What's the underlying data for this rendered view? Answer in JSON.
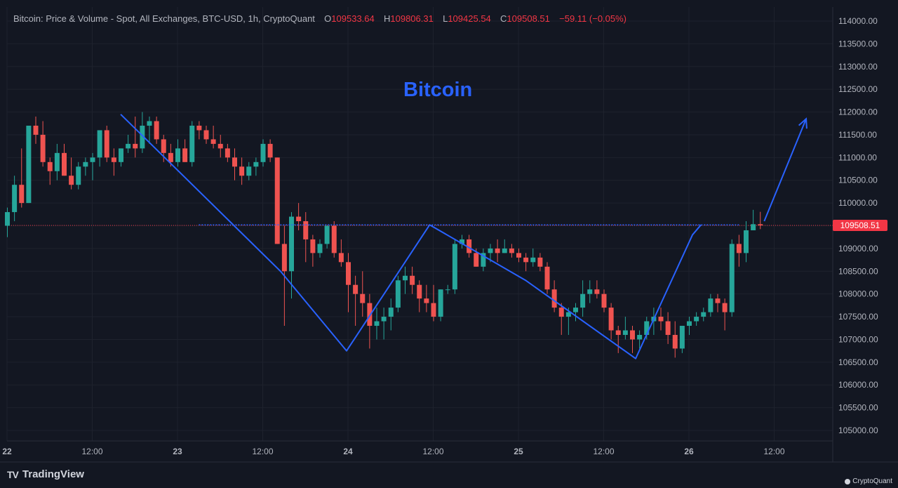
{
  "legend": {
    "symbol": "Bitcoin: Price & Volume - Spot, All Exchanges, BTC-USD, 1h, CryptoQuant",
    "open_label": "O",
    "open": "109533.64",
    "high_label": "H",
    "high": "109806.31",
    "low_label": "L",
    "low": "109425.54",
    "close_label": "C",
    "close": "109508.51",
    "change": "−59.11 (−0.05%)"
  },
  "annotation": {
    "title": "Bitcoin"
  },
  "branding": {
    "tradingview": "TradingView",
    "cryptoquant": "CryptoQuant"
  },
  "last_price_tag": "109508.51",
  "colors": {
    "background": "#131722",
    "grid": "#1e222d",
    "up": "#26a69a",
    "down": "#ef5350",
    "drawing": "#2962ff",
    "last_price": "#f23645"
  },
  "chart_data": {
    "type": "candlestick",
    "interval": "1h",
    "ylim": [
      104700,
      114300
    ],
    "yticks": [
      "114000.00",
      "113500.00",
      "113000.00",
      "112500.00",
      "112000.00",
      "111500.00",
      "111000.00",
      "110500.00",
      "110000.00",
      "109500.00",
      "109000.00",
      "108500.00",
      "108000.00",
      "107500.00",
      "107000.00",
      "106500.00",
      "106000.00",
      "105500.00",
      "105000.00"
    ],
    "xticks": [
      {
        "label": "22",
        "bold": true,
        "hour": 0
      },
      {
        "label": "12:00",
        "bold": false,
        "hour": 12
      },
      {
        "label": "23",
        "bold": true,
        "hour": 24
      },
      {
        "label": "12:00",
        "bold": false,
        "hour": 36
      },
      {
        "label": "24",
        "bold": true,
        "hour": 48
      },
      {
        "label": "12:00",
        "bold": false,
        "hour": 60
      },
      {
        "label": "25",
        "bold": true,
        "hour": 72
      },
      {
        "label": "12:00",
        "bold": false,
        "hour": 84
      },
      {
        "label": "26",
        "bold": true,
        "hour": 96
      },
      {
        "label": "12:00",
        "bold": false,
        "hour": 108
      }
    ],
    "last_price": 109508.51,
    "candles": [
      [
        0,
        109500,
        109900,
        109250,
        109800
      ],
      [
        1,
        109800,
        110600,
        109600,
        110400
      ],
      [
        2,
        110400,
        111200,
        109900,
        110000
      ],
      [
        3,
        110000,
        111700,
        110000,
        111700
      ],
      [
        4,
        111700,
        111900,
        111300,
        111500
      ],
      [
        5,
        111500,
        111800,
        110800,
        110900
      ],
      [
        6,
        110900,
        111000,
        110400,
        110700
      ],
      [
        7,
        110700,
        111300,
        110500,
        111100
      ],
      [
        8,
        111100,
        111300,
        110600,
        110600
      ],
      [
        9,
        110600,
        111000,
        110300,
        110400
      ],
      [
        10,
        110400,
        110900,
        110300,
        110800
      ],
      [
        11,
        110800,
        111000,
        110600,
        110900
      ],
      [
        12,
        110900,
        111100,
        110500,
        111000
      ],
      [
        13,
        111000,
        111600,
        110800,
        111600
      ],
      [
        14,
        111600,
        111700,
        110900,
        111000
      ],
      [
        15,
        111000,
        111200,
        110600,
        110900
      ],
      [
        16,
        110900,
        111200,
        110800,
        111200
      ],
      [
        17,
        111200,
        111500,
        111100,
        111300
      ],
      [
        18,
        111300,
        111900,
        111000,
        111200
      ],
      [
        19,
        111200,
        112000,
        111100,
        111700
      ],
      [
        20,
        111700,
        111900,
        111300,
        111800
      ],
      [
        21,
        111800,
        111900,
        111300,
        111400
      ],
      [
        22,
        111400,
        111500,
        110900,
        111100
      ],
      [
        23,
        111100,
        111300,
        110800,
        110900
      ],
      [
        24,
        110900,
        111400,
        110800,
        111200
      ],
      [
        25,
        111200,
        111400,
        110900,
        110900
      ],
      [
        26,
        110900,
        111800,
        110800,
        111700
      ],
      [
        27,
        111700,
        111800,
        111400,
        111600
      ],
      [
        28,
        111600,
        111700,
        111300,
        111400
      ],
      [
        29,
        111400,
        111700,
        111200,
        111300
      ],
      [
        30,
        111300,
        111500,
        111000,
        111200
      ],
      [
        31,
        111200,
        111300,
        110900,
        111000
      ],
      [
        32,
        111000,
        111200,
        110500,
        110800
      ],
      [
        33,
        110800,
        111000,
        110400,
        110600
      ],
      [
        34,
        110600,
        110900,
        110500,
        110800
      ],
      [
        35,
        110800,
        111000,
        110600,
        110900
      ],
      [
        36,
        110900,
        111400,
        110800,
        111300
      ],
      [
        37,
        111300,
        111400,
        110900,
        111000
      ],
      [
        38,
        111000,
        111000,
        109100,
        109100
      ],
      [
        39,
        109100,
        109500,
        107300,
        108500
      ],
      [
        40,
        108500,
        109800,
        107900,
        109700
      ],
      [
        41,
        109700,
        110000,
        109400,
        109600
      ],
      [
        42,
        109600,
        109800,
        108700,
        109200
      ],
      [
        43,
        109200,
        109300,
        108600,
        108900
      ],
      [
        44,
        108900,
        109200,
        108800,
        109100
      ],
      [
        45,
        109100,
        109500,
        109000,
        109500
      ],
      [
        46,
        109500,
        109600,
        108800,
        108900
      ],
      [
        47,
        108900,
        109200,
        108600,
        108700
      ],
      [
        48,
        108700,
        108900,
        107600,
        108200
      ],
      [
        49,
        108200,
        108400,
        107300,
        108000
      ],
      [
        50,
        108000,
        108500,
        107500,
        107800
      ],
      [
        51,
        107800,
        108000,
        106800,
        107300
      ],
      [
        52,
        107300,
        107700,
        107000,
        107400
      ],
      [
        53,
        107400,
        107700,
        107000,
        107500
      ],
      [
        54,
        107500,
        107900,
        107200,
        107700
      ],
      [
        55,
        107700,
        108400,
        107600,
        108300
      ],
      [
        56,
        108300,
        108600,
        108000,
        108400
      ],
      [
        57,
        108400,
        108600,
        108000,
        108200
      ],
      [
        58,
        108200,
        108300,
        107600,
        107900
      ],
      [
        59,
        107900,
        108200,
        107600,
        107800
      ],
      [
        60,
        107800,
        108200,
        107400,
        107500
      ],
      [
        61,
        107500,
        108100,
        107400,
        108100
      ],
      [
        62,
        108100,
        108200,
        108000,
        108100
      ],
      [
        63,
        108100,
        109200,
        108000,
        109100
      ],
      [
        64,
        109100,
        109300,
        109000,
        109200
      ],
      [
        65,
        109200,
        109300,
        108800,
        108900
      ],
      [
        66,
        108900,
        109000,
        108600,
        108600
      ],
      [
        67,
        108600,
        109000,
        108500,
        108900
      ],
      [
        68,
        108900,
        109100,
        108700,
        109000
      ],
      [
        69,
        109000,
        109200,
        108700,
        108900
      ],
      [
        70,
        108900,
        109200,
        108900,
        109000
      ],
      [
        71,
        109000,
        109100,
        108800,
        108900
      ],
      [
        72,
        108900,
        109000,
        108700,
        108800
      ],
      [
        73,
        108800,
        108900,
        108500,
        108700
      ],
      [
        74,
        108700,
        109000,
        108600,
        108800
      ],
      [
        75,
        108800,
        108900,
        108500,
        108600
      ],
      [
        76,
        108600,
        108700,
        108000,
        108100
      ],
      [
        77,
        108100,
        108300,
        107600,
        107700
      ],
      [
        78,
        107700,
        107800,
        107100,
        107500
      ],
      [
        79,
        107500,
        107700,
        107100,
        107600
      ],
      [
        80,
        107600,
        107800,
        107400,
        107700
      ],
      [
        81,
        107700,
        108300,
        107500,
        108000
      ],
      [
        82,
        108000,
        108300,
        107800,
        108100
      ],
      [
        83,
        108100,
        108300,
        107900,
        108000
      ],
      [
        84,
        108000,
        108100,
        107600,
        107700
      ],
      [
        85,
        107700,
        107800,
        107000,
        107200
      ],
      [
        86,
        107200,
        107300,
        106700,
        107100
      ],
      [
        87,
        107100,
        107500,
        107000,
        107200
      ],
      [
        88,
        107200,
        107300,
        106700,
        107000
      ],
      [
        89,
        107000,
        107200,
        106800,
        107100
      ],
      [
        90,
        107100,
        107500,
        107000,
        107400
      ],
      [
        91,
        107400,
        107700,
        107100,
        107500
      ],
      [
        92,
        107500,
        107700,
        107200,
        107400
      ],
      [
        93,
        107400,
        107600,
        106900,
        107100
      ],
      [
        94,
        107100,
        107400,
        106600,
        106800
      ],
      [
        95,
        106800,
        107300,
        106700,
        107300
      ],
      [
        96,
        107300,
        107500,
        107100,
        107400
      ],
      [
        97,
        107400,
        107600,
        107300,
        107500
      ],
      [
        98,
        107500,
        107700,
        107400,
        107600
      ],
      [
        99,
        107600,
        108000,
        107500,
        107900
      ],
      [
        100,
        107900,
        108000,
        107600,
        107800
      ],
      [
        101,
        107800,
        107900,
        107200,
        107600
      ],
      [
        102,
        107600,
        109200,
        107500,
        109100
      ],
      [
        103,
        109100,
        109300,
        108600,
        108900
      ],
      [
        104,
        108900,
        109600,
        108700,
        109400
      ],
      [
        105,
        109400,
        109850,
        109400,
        109534
      ],
      [
        106,
        109534,
        109806,
        109425,
        109509
      ]
    ],
    "drawings": {
      "pattern_lines": [
        [
          [
            15,
            111950
          ],
          [
            31,
            107000
          ]
        ],
        [
          [
            31,
            107000
          ],
          [
            40,
            109500
          ]
        ],
        [
          [
            40,
            109500
          ],
          [
            59.5,
            106550
          ]
        ],
        [
          [
            59.5,
            106550
          ],
          [
            69.5,
            109520
          ]
        ]
      ],
      "pattern_segment_hours": [
        [
          16,
          38.5
        ],
        [
          38.5,
          49.3
        ],
        [
          49.3,
          60
        ],
        [
          60,
          73
        ],
        [
          73,
          87.2
        ],
        [
          87.2,
          97.7
        ]
      ],
      "neckline": {
        "price": 109520,
        "from_hour": 27,
        "to_hour": 106
      },
      "arrow": [
        [
          106.6,
          109600
        ],
        [
          112.5,
          111850
        ]
      ]
    }
  }
}
